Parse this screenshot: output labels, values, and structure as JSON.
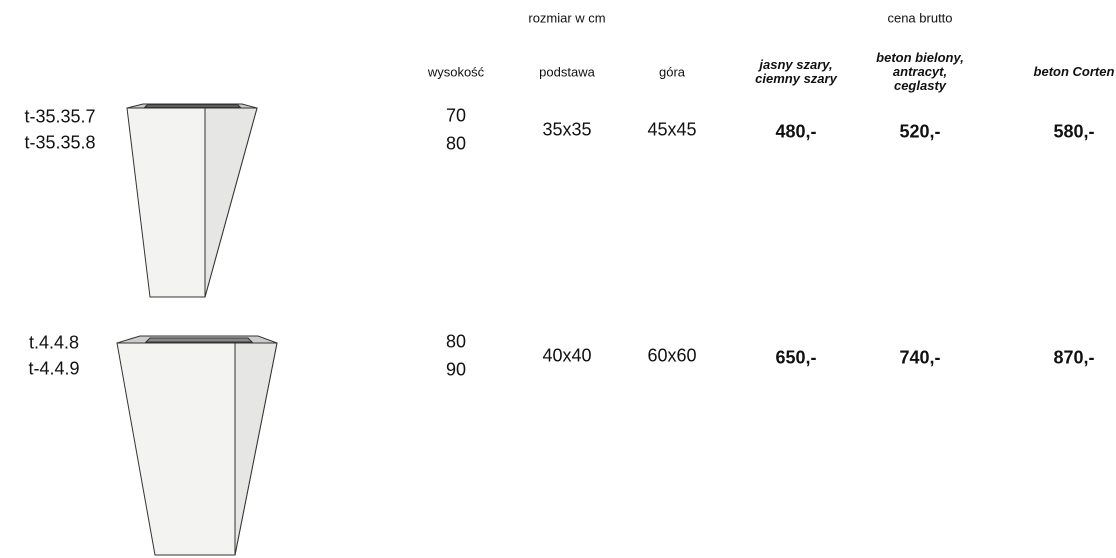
{
  "header": {
    "groups": [
      "rozmiar w cm",
      "cena brutto"
    ],
    "columns": [
      [
        "wysokość"
      ],
      [
        "podstawa"
      ],
      [
        "góra"
      ],
      [
        "jasny szary,",
        "ciemny szary"
      ],
      [
        "beton bielony,",
        "antracyt,",
        "ceglasty"
      ],
      [
        "beton Corten"
      ]
    ]
  },
  "table": {
    "rows": [
      {
        "codes": [
          "t-35.35.7",
          "t-35.35.8"
        ],
        "heights": [
          70,
          80
        ],
        "base": "35x35",
        "top": "45x45",
        "prices": [
          "480,-",
          "520,-",
          "580,-"
        ]
      },
      {
        "codes": [
          "t.4.4.8",
          "t-4.4.9"
        ],
        "heights": [
          80,
          90
        ],
        "base": "40x40",
        "top": "60x60",
        "prices": [
          "650,-",
          "740,-",
          "870,-"
        ]
      }
    ]
  }
}
